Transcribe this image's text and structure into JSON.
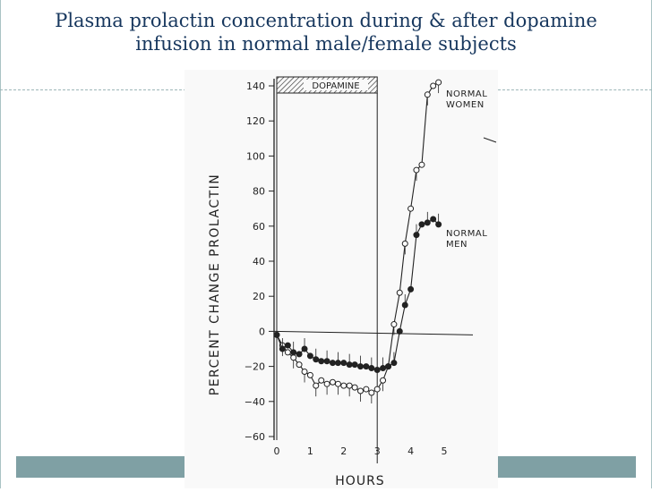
{
  "slide": {
    "title_line1": "Plasma prolactin concentration during & after dopamine",
    "title_line2": "infusion in normal male/female subjects",
    "accent_color": "#17375e",
    "band_color": "#7fa0a4"
  },
  "chart_data": {
    "type": "line",
    "xlabel": "HOURS",
    "ylabel": "PERCENT CHANGE PROLACTIN",
    "xlim": [
      0,
      5
    ],
    "ylim": [
      -60,
      140
    ],
    "x_ticks": [
      "0",
      "1",
      "2",
      "3",
      "4",
      "5"
    ],
    "y_ticks": [
      "140",
      "120",
      "100",
      "80",
      "60",
      "40",
      "20",
      "0",
      "-20",
      "-40",
      "-60"
    ],
    "annotation": "DOPAMINE",
    "infusion_period": [
      0,
      3
    ],
    "series": [
      {
        "name": "NORMAL WOMEN",
        "marker": "open",
        "x": [
          0.0,
          0.17,
          0.33,
          0.5,
          0.67,
          0.83,
          1.0,
          1.17,
          1.33,
          1.5,
          1.67,
          1.83,
          2.0,
          2.17,
          2.33,
          2.5,
          2.67,
          2.83,
          3.0,
          3.17,
          3.33,
          3.5,
          3.67,
          3.83,
          4.0,
          4.17,
          4.33,
          4.5,
          4.67,
          4.83
        ],
        "values": [
          -2,
          -8,
          -12,
          -15,
          -19,
          -23,
          -25,
          -31,
          -28,
          -30,
          -29,
          -30,
          -31,
          -31,
          -32,
          -34,
          -33,
          -35,
          -33,
          -28,
          -20,
          4,
          22,
          50,
          70,
          92,
          95,
          135,
          140,
          142
        ]
      },
      {
        "name": "NORMAL MEN",
        "marker": "filled",
        "x": [
          0.0,
          0.17,
          0.33,
          0.5,
          0.67,
          0.83,
          1.0,
          1.17,
          1.33,
          1.5,
          1.67,
          1.83,
          2.0,
          2.17,
          2.33,
          2.5,
          2.67,
          2.83,
          3.0,
          3.17,
          3.33,
          3.5,
          3.67,
          3.83,
          4.0,
          4.17,
          4.33,
          4.5,
          4.67,
          4.83
        ],
        "values": [
          -2,
          -10,
          -8,
          -12,
          -13,
          -10,
          -14,
          -16,
          -17,
          -17,
          -18,
          -18,
          -18,
          -19,
          -19,
          -20,
          -20,
          -21,
          -22,
          -21,
          -20,
          -18,
          0,
          15,
          24,
          55,
          61,
          62,
          64,
          61
        ]
      }
    ]
  }
}
